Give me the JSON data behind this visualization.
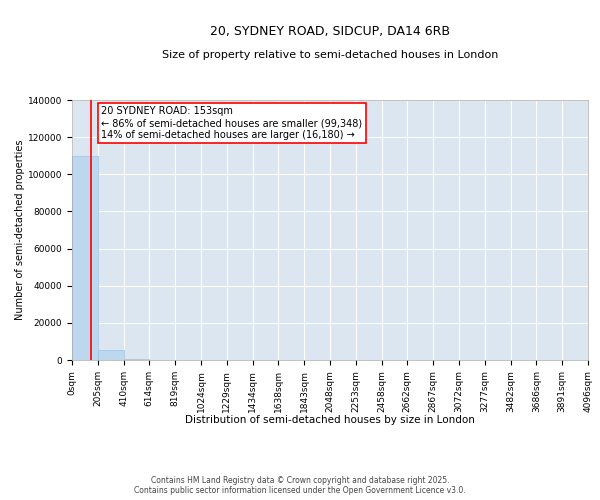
{
  "title": "20, SYDNEY ROAD, SIDCUP, DA14 6RB",
  "subtitle": "Size of property relative to semi-detached houses in London",
  "xlabel": "Distribution of semi-detached houses by size in London",
  "ylabel": "Number of semi-detached properties",
  "property_size": 153,
  "property_label": "20 SYDNEY ROAD: 153sqm",
  "pct_smaller": 86,
  "count_smaller": 99348,
  "pct_larger": 14,
  "count_larger": 16180,
  "bar_color": "#bdd7ee",
  "bar_edge_color": "#9dc3e6",
  "vline_color": "#ff0000",
  "annotation_box_color": "#ff0000",
  "background_color": "#dce6f1",
  "grid_color": "#ffffff",
  "footer_text": "Contains HM Land Registry data © Crown copyright and database right 2025.\nContains public sector information licensed under the Open Government Licence v3.0.",
  "bin_edges": [
    0,
    205,
    410,
    614,
    819,
    1024,
    1229,
    1434,
    1638,
    1843,
    2048,
    2253,
    2458,
    2662,
    2867,
    3072,
    3277,
    3482,
    3686,
    3891,
    4096
  ],
  "bin_labels": [
    "0sqm",
    "205sqm",
    "410sqm",
    "614sqm",
    "819sqm",
    "1024sqm",
    "1229sqm",
    "1434sqm",
    "1638sqm",
    "1843sqm",
    "2048sqm",
    "2253sqm",
    "2458sqm",
    "2662sqm",
    "2867sqm",
    "3072sqm",
    "3277sqm",
    "3482sqm",
    "3686sqm",
    "3891sqm",
    "4096sqm"
  ],
  "bar_heights": [
    110000,
    5200,
    500,
    200,
    100,
    50,
    30,
    20,
    15,
    10,
    8,
    6,
    5,
    4,
    3,
    3,
    2,
    2,
    1,
    1
  ],
  "ylim": [
    0,
    140000
  ],
  "yticks": [
    0,
    20000,
    40000,
    60000,
    80000,
    100000,
    120000,
    140000
  ],
  "title_fontsize": 9,
  "subtitle_fontsize": 8,
  "ylabel_fontsize": 7,
  "xlabel_fontsize": 7.5,
  "tick_fontsize": 6.5,
  "annot_fontsize": 7
}
